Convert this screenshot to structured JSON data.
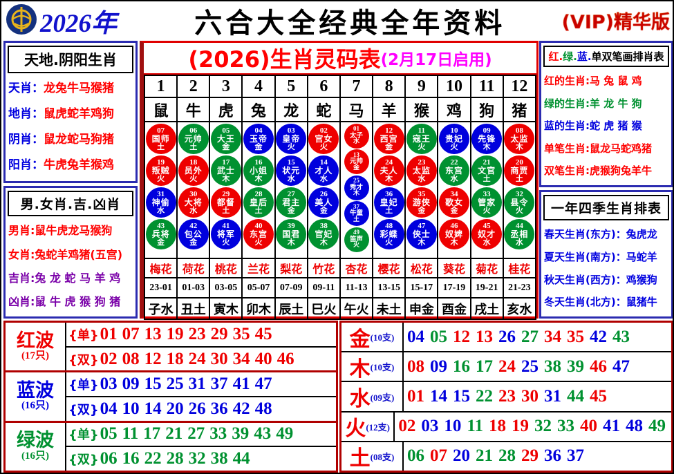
{
  "colors": {
    "r": "#ee0000",
    "g": "#009130",
    "b": "#0000dd",
    "magenta": "#ff00ff",
    "purple": "#7a00a8",
    "blue_text": "#0000e0",
    "red_text": "#ff0000"
  },
  "header": {
    "year": "2026年",
    "title": "六合大全经典全年资料",
    "vip": "(VIP)精华版"
  },
  "left_sidebar": {
    "box1": {
      "title": "天地.阴阳生肖",
      "rows": [
        {
          "label": "天肖：",
          "value": "龙兔牛马猴猪",
          "label_color": "#0000e0",
          "value_color": "#ff0000"
        },
        {
          "label": "地肖：",
          "value": "鼠虎蛇羊鸡狗",
          "label_color": "#0000e0",
          "value_color": "#ff0000"
        },
        {
          "label": "阴肖：",
          "value": "鼠龙蛇马狗猪",
          "label_color": "#0000e0",
          "value_color": "#ff0000"
        },
        {
          "label": "阳肖：",
          "value": "牛虎兔羊猴鸡",
          "label_color": "#0000e0",
          "value_color": "#ff0000"
        }
      ]
    },
    "box2": {
      "title": "男.女肖.吉.凶肖",
      "rows": [
        {
          "label": "男肖:",
          "value": "鼠牛虎龙马猴狗",
          "label_color": "#ff0000",
          "value_color": "#ff0000"
        },
        {
          "label": "女肖:",
          "value": "兔蛇羊鸡猪(五宫)",
          "label_color": "#ff0000",
          "value_color": "#ff0000"
        },
        {
          "label": "吉肖:",
          "value": "兔 龙 蛇 马 羊 鸡",
          "label_color": "#7a00a8",
          "value_color": "#7a00a8"
        },
        {
          "label": "凶肖:",
          "value": "鼠 牛 虎 猴 狗 猪",
          "label_color": "#7a00a8",
          "value_color": "#7a00a8"
        }
      ]
    }
  },
  "main_table": {
    "title": "(2026)生肖灵码表",
    "subtitle": "(2月17日启用)",
    "numbers": [
      "1",
      "2",
      "3",
      "4",
      "5",
      "6",
      "7",
      "8",
      "9",
      "10",
      "11",
      "12"
    ],
    "zodiacs": [
      "鼠",
      "牛",
      "虎",
      "兔",
      "龙",
      "蛇",
      "马",
      "羊",
      "猴",
      "鸡",
      "狗",
      "猪"
    ],
    "circle_columns": [
      [
        {
          "n": "07",
          "t": "国师",
          "e": "土",
          "c": "r"
        },
        {
          "n": "19",
          "t": "叛贼",
          "e": "火",
          "c": "r"
        },
        {
          "n": "31",
          "t": "神偷",
          "e": "水",
          "c": "b"
        },
        {
          "n": "43",
          "t": "兵将",
          "e": "金",
          "c": "g"
        }
      ],
      [
        {
          "n": "06",
          "t": "元帅",
          "e": "土",
          "c": "g"
        },
        {
          "n": "18",
          "t": "员外",
          "e": "火",
          "c": "r"
        },
        {
          "n": "30",
          "t": "大将",
          "e": "水",
          "c": "r"
        },
        {
          "n": "42",
          "t": "包公",
          "e": "金",
          "c": "b"
        }
      ],
      [
        {
          "n": "05",
          "t": "大王",
          "e": "金",
          "c": "g"
        },
        {
          "n": "17",
          "t": "武士",
          "e": "木",
          "c": "g"
        },
        {
          "n": "29",
          "t": "都督",
          "e": "土",
          "c": "r"
        },
        {
          "n": "41",
          "t": "将军",
          "e": "火",
          "c": "b"
        }
      ],
      [
        {
          "n": "04",
          "t": "玉帝",
          "e": "金",
          "c": "b"
        },
        {
          "n": "16",
          "t": "小姐",
          "e": "木",
          "c": "g"
        },
        {
          "n": "28",
          "t": "皇后",
          "e": "土",
          "c": "g"
        },
        {
          "n": "40",
          "t": "东宫",
          "e": "火",
          "c": "r"
        }
      ],
      [
        {
          "n": "03",
          "t": "皇帝",
          "e": "火",
          "c": "b"
        },
        {
          "n": "15",
          "t": "状元",
          "e": "水",
          "c": "b"
        },
        {
          "n": "27",
          "t": "君主",
          "e": "金",
          "c": "g"
        },
        {
          "n": "39",
          "t": "国君",
          "e": "木",
          "c": "g"
        }
      ],
      [
        {
          "n": "02",
          "t": "官女",
          "e": "火",
          "c": "r"
        },
        {
          "n": "14",
          "t": "才人",
          "e": "水",
          "c": "b"
        },
        {
          "n": "26",
          "t": "美人",
          "e": "金",
          "c": "b"
        },
        {
          "n": "38",
          "t": "官妃",
          "e": "木",
          "c": "g"
        }
      ],
      [
        {
          "n": "01",
          "t": "太子",
          "e": "水",
          "c": "r"
        },
        {
          "n": "13",
          "t": "元帅",
          "e": "金",
          "c": "r"
        },
        {
          "n": "25",
          "t": "秀才",
          "e": "木",
          "c": "b"
        },
        {
          "n": "37",
          "t": "牛童",
          "e": "土",
          "c": "b"
        },
        {
          "n": "49",
          "t": "笛声",
          "e": "火",
          "c": "g"
        }
      ],
      [
        {
          "n": "12",
          "t": "西宫",
          "e": "金",
          "c": "r"
        },
        {
          "n": "24",
          "t": "夫人",
          "e": "木",
          "c": "r"
        },
        {
          "n": "36",
          "t": "皇妃",
          "e": "土",
          "c": "b"
        },
        {
          "n": "48",
          "t": "彩蝶",
          "e": "火",
          "c": "b"
        }
      ],
      [
        {
          "n": "11",
          "t": "寇王",
          "e": "火",
          "c": "g"
        },
        {
          "n": "23",
          "t": "太监",
          "e": "水",
          "c": "r"
        },
        {
          "n": "35",
          "t": "游侠",
          "e": "金",
          "c": "r"
        },
        {
          "n": "47",
          "t": "侠士",
          "e": "木",
          "c": "b"
        }
      ],
      [
        {
          "n": "10",
          "t": "贵妃",
          "e": "火",
          "c": "b"
        },
        {
          "n": "22",
          "t": "东宫",
          "e": "水",
          "c": "g"
        },
        {
          "n": "34",
          "t": "歌女",
          "e": "金",
          "c": "r"
        },
        {
          "n": "46",
          "t": "奴婢",
          "e": "木",
          "c": "r"
        }
      ],
      [
        {
          "n": "09",
          "t": "先锋",
          "e": "木",
          "c": "b"
        },
        {
          "n": "21",
          "t": "文官",
          "e": "土",
          "c": "g"
        },
        {
          "n": "33",
          "t": "管家",
          "e": "火",
          "c": "g"
        },
        {
          "n": "45",
          "t": "奴才",
          "e": "水",
          "c": "r"
        }
      ],
      [
        {
          "n": "08",
          "t": "太监",
          "e": "木",
          "c": "r"
        },
        {
          "n": "20",
          "t": "商贾",
          "e": "土",
          "c": "r"
        },
        {
          "n": "32",
          "t": "县令",
          "e": "火",
          "c": "g"
        },
        {
          "n": "44",
          "t": "丞相",
          "e": "水",
          "c": "g"
        }
      ]
    ],
    "flowers": [
      "梅花",
      "荷花",
      "桃花",
      "兰花",
      "梨花",
      "竹花",
      "杏花",
      "樱花",
      "松花",
      "葵花",
      "菊花",
      "桂花"
    ],
    "times": [
      "23-01",
      "01-03",
      "03-05",
      "05-07",
      "07-09",
      "09-11",
      "11-13",
      "13-15",
      "15-17",
      "17-19",
      "19-21",
      "21-23"
    ],
    "branches": [
      "子水",
      "丑土",
      "寅木",
      "卯木",
      "辰土",
      "巳火",
      "午火",
      "未土",
      "申金",
      "酉金",
      "戌土",
      "亥水"
    ]
  },
  "right_sidebar": {
    "box1": {
      "title_segments": [
        {
          "t": "红.",
          "c": "#ff0000"
        },
        {
          "t": "绿.",
          "c": "#009130"
        },
        {
          "t": "蓝.",
          "c": "#0000dd"
        },
        {
          "t": "单双笔画排肖表",
          "c": "#000000"
        }
      ],
      "rows": [
        {
          "label": "红的生肖:",
          "value": "马 兔 鼠 鸡",
          "label_color": "#ff0000",
          "value_color": "#ff0000"
        },
        {
          "label": "绿的生肖:",
          "value": "羊 龙 牛 狗",
          "label_color": "#009130",
          "value_color": "#009130"
        },
        {
          "label": "蓝的生肖:",
          "value": "蛇 虎 猪 猴",
          "label_color": "#0000dd",
          "value_color": "#0000dd"
        },
        {
          "label": "单笔生肖:",
          "value": "鼠龙马蛇鸡猪",
          "label_color": "#ff0000",
          "value_color": "#ff0000"
        },
        {
          "label": "双笔生肖:",
          "value": "虎猴狗兔羊牛",
          "label_color": "#ff0000",
          "value_color": "#ff0000"
        }
      ]
    },
    "box2": {
      "title": "一年四季生肖排表",
      "rows": [
        {
          "label": "春天生肖(东方)：",
          "value": "兔虎龙",
          "label_color": "#0000e0",
          "value_color": "#0000e0"
        },
        {
          "label": "夏天生肖(南方)：",
          "value": "马蛇羊",
          "label_color": "#0000e0",
          "value_color": "#0000e0"
        },
        {
          "label": "秋天生肖(西方)：",
          "value": "鸡猴狗",
          "label_color": "#0000e0",
          "value_color": "#0000e0"
        },
        {
          "label": "冬天生肖(北方)：",
          "value": "鼠猪牛",
          "label_color": "#0000e0",
          "value_color": "#0000e0"
        }
      ]
    }
  },
  "waves": {
    "odd_tag": "{单}",
    "even_tag": "{双}",
    "groups": [
      {
        "name": "红波",
        "count": "(17只)",
        "c": "r",
        "odd": [
          "01",
          "07",
          "13",
          "19",
          "23",
          "29",
          "35",
          "45"
        ],
        "even": [
          "02",
          "08",
          "12",
          "18",
          "24",
          "30",
          "34",
          "40",
          "46"
        ]
      },
      {
        "name": "蓝波",
        "count": "(16只)",
        "c": "b",
        "odd": [
          "03",
          "09",
          "15",
          "25",
          "31",
          "37",
          "41",
          "47"
        ],
        "even": [
          "04",
          "10",
          "14",
          "20",
          "26",
          "36",
          "42",
          "48"
        ]
      },
      {
        "name": "绿波",
        "count": "(16只)",
        "c": "g",
        "odd": [
          "05",
          "11",
          "17",
          "21",
          "27",
          "33",
          "39",
          "43",
          "49"
        ],
        "even": [
          "06",
          "16",
          "22",
          "28",
          "32",
          "38",
          "44"
        ]
      }
    ]
  },
  "elements": {
    "groups": [
      {
        "name": "金",
        "count": "(10支)",
        "numbers": [
          [
            "04",
            "b"
          ],
          [
            "05",
            "g"
          ],
          [
            "12",
            "r"
          ],
          [
            "13",
            "r"
          ],
          [
            "26",
            "b"
          ],
          [
            "27",
            "g"
          ],
          [
            "34",
            "r"
          ],
          [
            "35",
            "r"
          ],
          [
            "42",
            "b"
          ],
          [
            "43",
            "g"
          ]
        ]
      },
      {
        "name": "木",
        "count": "(10支)",
        "numbers": [
          [
            "08",
            "r"
          ],
          [
            "09",
            "b"
          ],
          [
            "16",
            "g"
          ],
          [
            "17",
            "g"
          ],
          [
            "24",
            "r"
          ],
          [
            "25",
            "b"
          ],
          [
            "38",
            "g"
          ],
          [
            "39",
            "g"
          ],
          [
            "46",
            "r"
          ],
          [
            "47",
            "b"
          ]
        ]
      },
      {
        "name": "水",
        "count": "(09支)",
        "numbers": [
          [
            "01",
            "r"
          ],
          [
            "14",
            "b"
          ],
          [
            "15",
            "b"
          ],
          [
            "22",
            "g"
          ],
          [
            "23",
            "r"
          ],
          [
            "30",
            "r"
          ],
          [
            "31",
            "b"
          ],
          [
            "44",
            "g"
          ],
          [
            "45",
            "r"
          ]
        ]
      },
      {
        "name": "火",
        "count": "(12支)",
        "numbers": [
          [
            "02",
            "r"
          ],
          [
            "03",
            "b"
          ],
          [
            "10",
            "b"
          ],
          [
            "11",
            "g"
          ],
          [
            "18",
            "r"
          ],
          [
            "19",
            "r"
          ],
          [
            "32",
            "g"
          ],
          [
            "33",
            "g"
          ],
          [
            "40",
            "r"
          ],
          [
            "41",
            "b"
          ],
          [
            "48",
            "b"
          ],
          [
            "49",
            "g"
          ]
        ]
      },
      {
        "name": "土",
        "count": "(08支)",
        "numbers": [
          [
            "06",
            "g"
          ],
          [
            "07",
            "r"
          ],
          [
            "20",
            "b"
          ],
          [
            "21",
            "g"
          ],
          [
            "28",
            "g"
          ],
          [
            "29",
            "r"
          ],
          [
            "36",
            "b"
          ],
          [
            "37",
            "b"
          ]
        ]
      }
    ]
  }
}
